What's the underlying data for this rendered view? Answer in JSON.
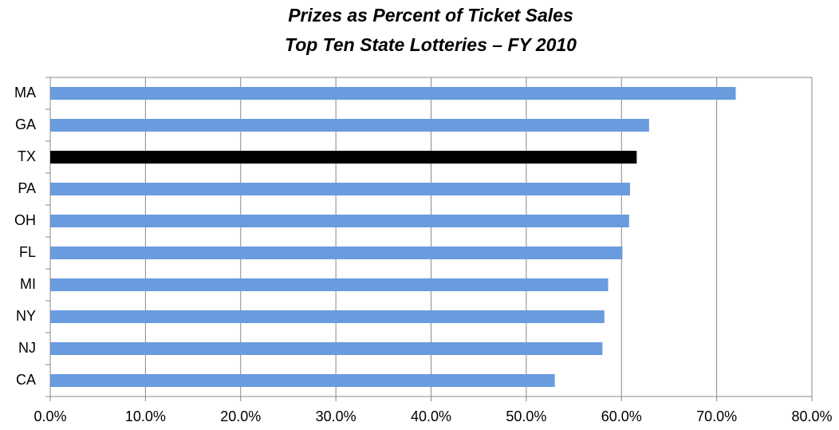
{
  "chart_data": {
    "type": "hbar",
    "title": "Prizes as Percent of Ticket Sales",
    "subtitle": "Top Ten State Lotteries – FY 2010",
    "categories": [
      "MA",
      "GA",
      "TX",
      "PA",
      "OH",
      "FL",
      "MI",
      "NY",
      "NJ",
      "CA"
    ],
    "values": [
      72.0,
      62.9,
      61.6,
      60.9,
      60.8,
      60.1,
      58.6,
      58.2,
      58.0,
      53.0
    ],
    "colors": [
      "#6a9bde",
      "#6a9bde",
      "#000000",
      "#6a9bde",
      "#6a9bde",
      "#6a9bde",
      "#6a9bde",
      "#6a9bde",
      "#6a9bde",
      "#6a9bde"
    ],
    "xlim": [
      0,
      80
    ],
    "xticks": [
      {
        "value": 0,
        "label": "0.0%"
      },
      {
        "value": 10,
        "label": "10.0%"
      },
      {
        "value": 20,
        "label": "20.0%"
      },
      {
        "value": 30,
        "label": "30.0%"
      },
      {
        "value": 40,
        "label": "40.0%"
      },
      {
        "value": 50,
        "label": "50.0%"
      },
      {
        "value": 60,
        "label": "60.0%"
      },
      {
        "value": 70,
        "label": "70.0%"
      },
      {
        "value": 80,
        "label": "80.0%"
      }
    ],
    "grid": true
  }
}
